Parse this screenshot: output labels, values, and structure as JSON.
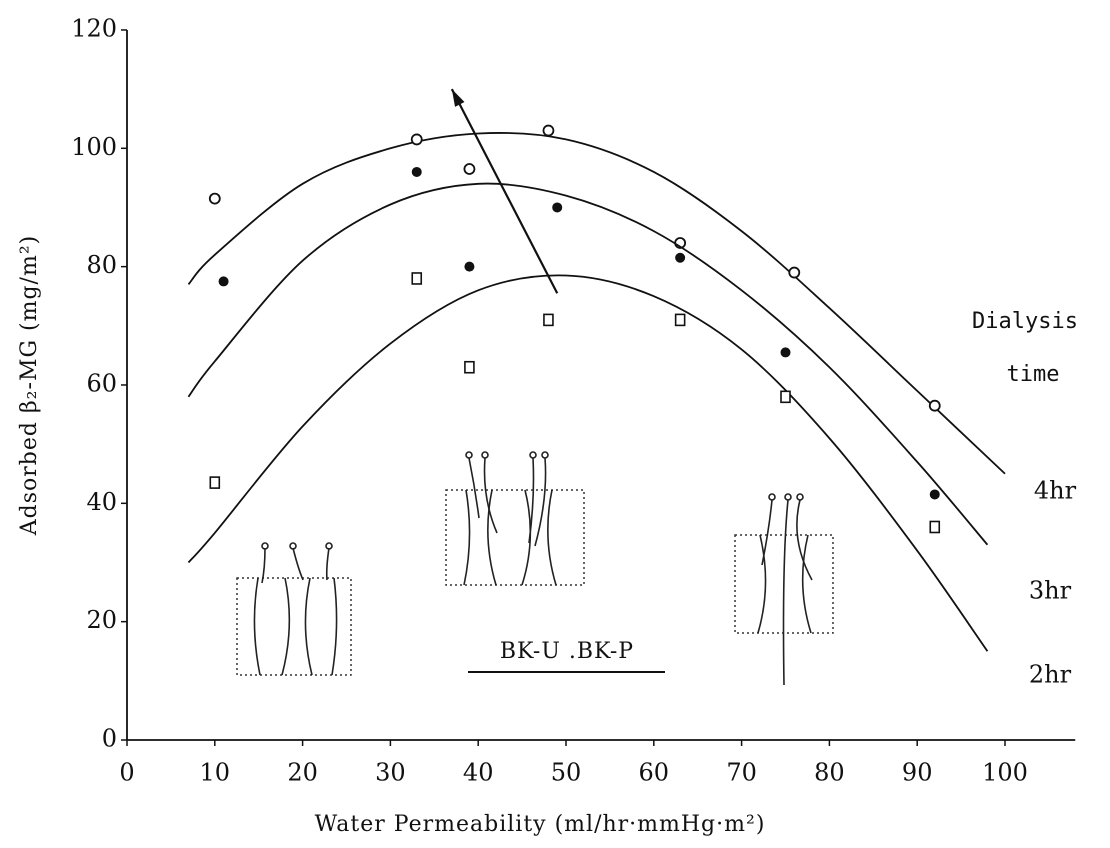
{
  "chart_data": {
    "type": "scatter",
    "x_label": "Water Permeability (ml/hr·mmHg·m²)",
    "y_label": "Adsorbed β₂-MG (mg/m²)",
    "xlim": [
      0,
      108
    ],
    "ylim": [
      0,
      120
    ],
    "xticks": [
      0,
      10,
      20,
      30,
      40,
      50,
      60,
      70,
      80,
      90,
      100
    ],
    "yticks": [
      0,
      20,
      40,
      60,
      80,
      100,
      120
    ],
    "legend_title": [
      "Dialysis",
      "time"
    ],
    "annotation": "BK-U .BK-P",
    "color": "#111111",
    "series": [
      {
        "name": "4hr",
        "marker": "open-circle",
        "x": [
          10,
          33,
          39,
          48,
          63,
          76,
          92
        ],
        "values": [
          91.5,
          101.5,
          96.5,
          103,
          84,
          79,
          56.5
        ],
        "curve_x": [
          7,
          10,
          20,
          30,
          40,
          50,
          60,
          70,
          80,
          90,
          100
        ],
        "curve_values": [
          77,
          82,
          94,
          100,
          102.5,
          101.5,
          96,
          86,
          73,
          59,
          45
        ]
      },
      {
        "name": "3hr",
        "marker": "filled-circle",
        "x": [
          11,
          33,
          39,
          49,
          63,
          75,
          92
        ],
        "values": [
          77.5,
          96,
          80,
          90,
          81.5,
          65.5,
          41.5
        ],
        "curve_x": [
          7,
          10,
          20,
          30,
          40,
          50,
          60,
          70,
          80,
          90,
          98
        ],
        "curve_values": [
          58,
          64,
          81,
          90.5,
          94,
          92,
          86,
          76,
          63,
          47,
          33
        ]
      },
      {
        "name": "2hr",
        "marker": "open-square",
        "x": [
          10,
          33,
          39,
          48,
          63,
          75,
          92
        ],
        "values": [
          43.5,
          78,
          63,
          71,
          71,
          58,
          36
        ],
        "curve_x": [
          7,
          10,
          20,
          30,
          40,
          50,
          60,
          70,
          80,
          90,
          98
        ],
        "curve_values": [
          30,
          35,
          53,
          67,
          76,
          78.5,
          75,
          66,
          51,
          32,
          15
        ]
      }
    ],
    "arrow": {
      "x": [
        49,
        37
      ],
      "values": [
        75.5,
        110
      ]
    }
  }
}
